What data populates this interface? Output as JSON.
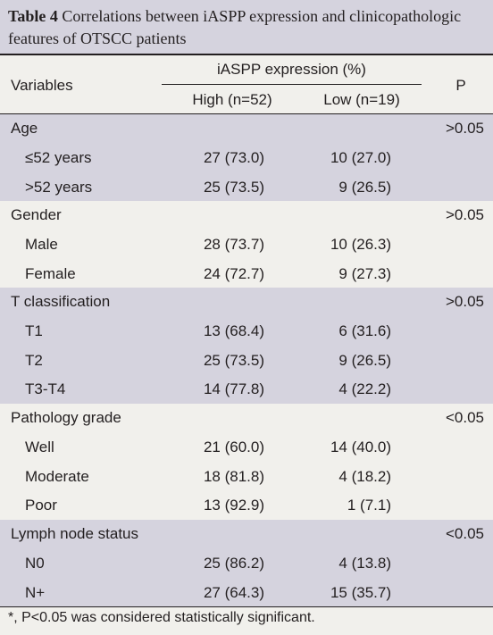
{
  "caption": {
    "label": "Table 4",
    "text": " Correlations between iASPP expression and clinicopathologic features of OTSCC patients"
  },
  "header": {
    "variables": "Variables",
    "group": "iASPP expression (%)",
    "high": "High (n=52)",
    "low": "Low (n=19)",
    "p": "P"
  },
  "groups": [
    {
      "name": "Age",
      "p": ">0.05",
      "rows": [
        {
          "label": "≤52 years",
          "high": "27 (73.0)",
          "low": "10 (27.0)"
        },
        {
          "label": ">52 years",
          "high": "25 (73.5)",
          "low": "9 (26.5)"
        }
      ]
    },
    {
      "name": "Gender",
      "p": ">0.05",
      "rows": [
        {
          "label": "Male",
          "high": "28 (73.7)",
          "low": "10 (26.3)"
        },
        {
          "label": "Female",
          "high": "24 (72.7)",
          "low": "9 (27.3)"
        }
      ]
    },
    {
      "name": "T classification",
      "p": ">0.05",
      "rows": [
        {
          "label": "T1",
          "high": "13 (68.4)",
          "low": "6 (31.6)"
        },
        {
          "label": "T2",
          "high": "25 (73.5)",
          "low": "9 (26.5)"
        },
        {
          "label": "T3-T4",
          "high": "14 (77.8)",
          "low": "4 (22.2)"
        }
      ]
    },
    {
      "name": "Pathology grade",
      "p": "<0.05",
      "rows": [
        {
          "label": "Well",
          "high": "21 (60.0)",
          "low": "14 (40.0)"
        },
        {
          "label": "Moderate",
          "high": "18 (81.8)",
          "low": "4 (18.2)"
        },
        {
          "label": "Poor",
          "high": "13 (92.9)",
          "low": "1 (7.1)"
        }
      ]
    },
    {
      "name": "Lymph node status",
      "p": "<0.05",
      "rows": [
        {
          "label": "N0",
          "high": "25 (86.2)",
          "low": "4 (13.8)"
        },
        {
          "label": "N+",
          "high": "27 (64.3)",
          "low": "15 (35.7)"
        }
      ]
    }
  ],
  "footnote": "*, P<0.05 was considered statistically significant."
}
